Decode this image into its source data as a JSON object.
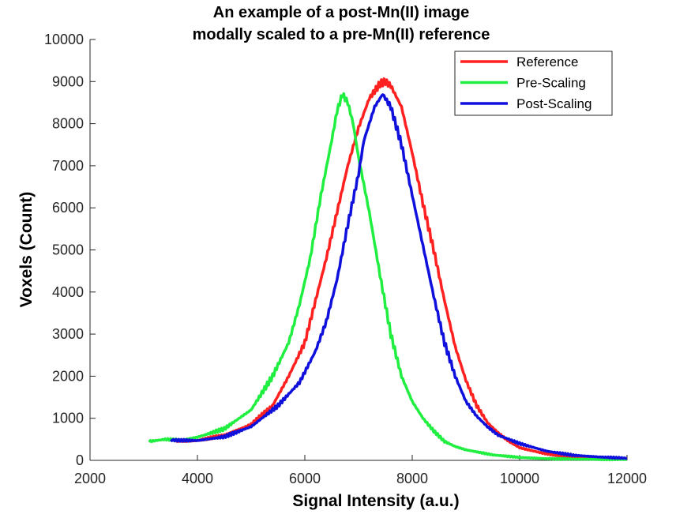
{
  "chart_data": {
    "type": "line",
    "title": [
      "An example of a post-Mn(II) image",
      "modally scaled to a pre-Mn(II) reference"
    ],
    "xlabel": "Signal Intensity (a.u.)",
    "ylabel": "Voxels (Count)",
    "xlim": [
      2000,
      12000
    ],
    "ylim": [
      0,
      10000
    ],
    "xticks": [
      "2000",
      "4000",
      "6000",
      "8000",
      "10000",
      "12000"
    ],
    "yticks": [
      "0",
      "1000",
      "2000",
      "3000",
      "4000",
      "5000",
      "6000",
      "7000",
      "8000",
      "9000",
      "10000"
    ],
    "grid": false,
    "legend_position": "top-right",
    "series": [
      {
        "name": "Reference",
        "color": "#ff2020",
        "x": [
          3600,
          4000,
          4500,
          5000,
          5400,
          5700,
          6000,
          6200,
          6400,
          6600,
          6800,
          7000,
          7200,
          7400,
          7500,
          7600,
          7800,
          8000,
          8200,
          8400,
          8600,
          8800,
          9000,
          9200,
          9400,
          9600,
          9800,
          10000,
          10400,
          10800,
          11200,
          11600,
          12000
        ],
        "y": [
          450,
          470,
          600,
          850,
          1300,
          2000,
          2800,
          3800,
          4800,
          5900,
          7000,
          7900,
          8600,
          8950,
          9000,
          8900,
          8400,
          7300,
          6100,
          5000,
          3800,
          2700,
          1900,
          1300,
          900,
          650,
          450,
          300,
          180,
          100,
          60,
          40,
          30
        ]
      },
      {
        "name": "Pre-Scaling",
        "color": "#20ee40",
        "x": [
          3100,
          3400,
          3700,
          4000,
          4500,
          5000,
          5400,
          5700,
          5900,
          6100,
          6300,
          6500,
          6600,
          6700,
          6800,
          6900,
          7000,
          7200,
          7400,
          7600,
          7800,
          8000,
          8200,
          8400,
          8600,
          8800,
          9000,
          9500,
          10000,
          10500,
          11000,
          11500,
          12000
        ],
        "y": [
          450,
          500,
          480,
          550,
          750,
          1200,
          2000,
          2800,
          3700,
          4800,
          6300,
          7600,
          8300,
          8700,
          8500,
          8000,
          7200,
          5900,
          4400,
          3000,
          2000,
          1400,
          1000,
          700,
          450,
          330,
          250,
          130,
          70,
          40,
          30,
          25,
          20
        ]
      },
      {
        "name": "Post-Scaling",
        "color": "#1010dd",
        "x": [
          3500,
          4000,
          4500,
          5000,
          5500,
          5900,
          6200,
          6400,
          6600,
          6800,
          7000,
          7100,
          7200,
          7300,
          7400,
          7450,
          7500,
          7600,
          7800,
          8000,
          8200,
          8400,
          8600,
          8800,
          9000,
          9200,
          9400,
          9600,
          10000,
          10500,
          11000,
          11500,
          12000
        ],
        "y": [
          480,
          470,
          560,
          800,
          1300,
          1850,
          2600,
          3300,
          4300,
          5600,
          6800,
          7600,
          8000,
          8400,
          8600,
          8700,
          8600,
          8400,
          7500,
          6300,
          5100,
          3900,
          2800,
          2000,
          1400,
          1050,
          800,
          600,
          400,
          220,
          120,
          80,
          50
        ]
      }
    ]
  }
}
